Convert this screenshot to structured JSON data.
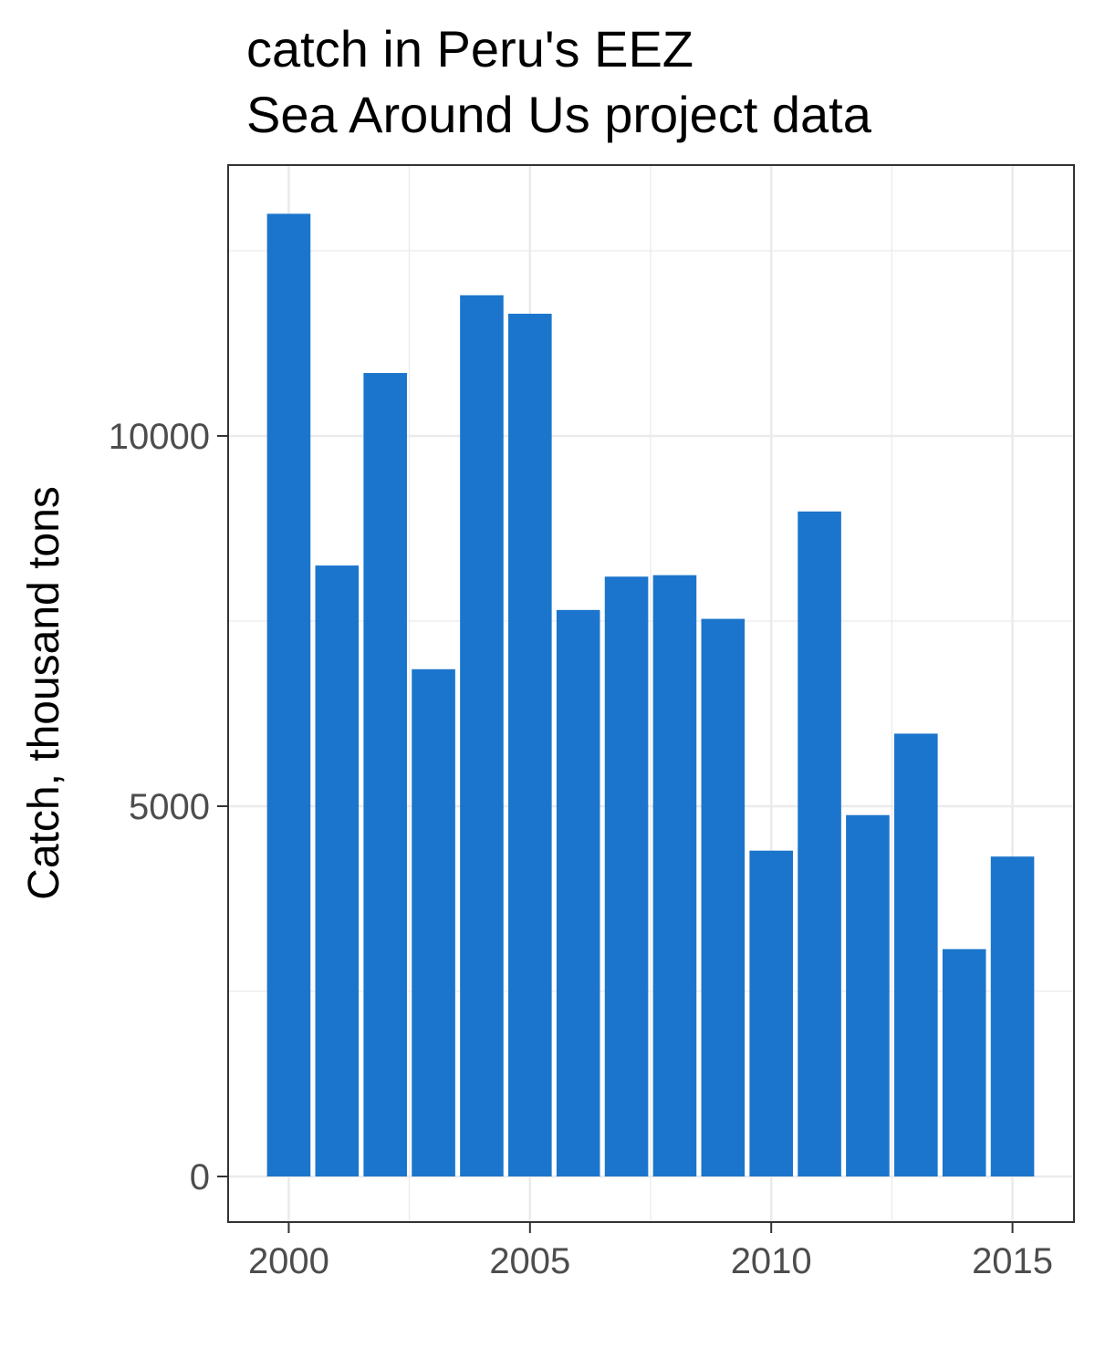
{
  "chart_data": {
    "type": "bar",
    "title": "catch in Peru's EEZ",
    "subtitle": "Sea Around Us project data",
    "xlabel": "",
    "ylabel": "Catch, thousand tons",
    "x": [
      2000,
      2001,
      2002,
      2003,
      2004,
      2005,
      2006,
      2007,
      2008,
      2009,
      2010,
      2011,
      2012,
      2013,
      2014,
      2015
    ],
    "values": [
      13000,
      8250,
      10850,
      6850,
      11900,
      11650,
      7650,
      8100,
      8120,
      7530,
      4400,
      8980,
      4880,
      5980,
      3070,
      4320
    ],
    "xlim": [
      1999.5,
      2015.5
    ],
    "ylim": [
      0,
      13000
    ],
    "x_ticks": [
      2000,
      2005,
      2010,
      2015
    ],
    "x_tick_labels": [
      "2000",
      "2005",
      "2010",
      "2015"
    ],
    "y_ticks": [
      0,
      5000,
      10000
    ],
    "y_tick_labels": [
      "0",
      "5000",
      "10000"
    ],
    "bar_color": "#1b75cc",
    "grid": true,
    "legend": "none",
    "theme": "bw"
  }
}
